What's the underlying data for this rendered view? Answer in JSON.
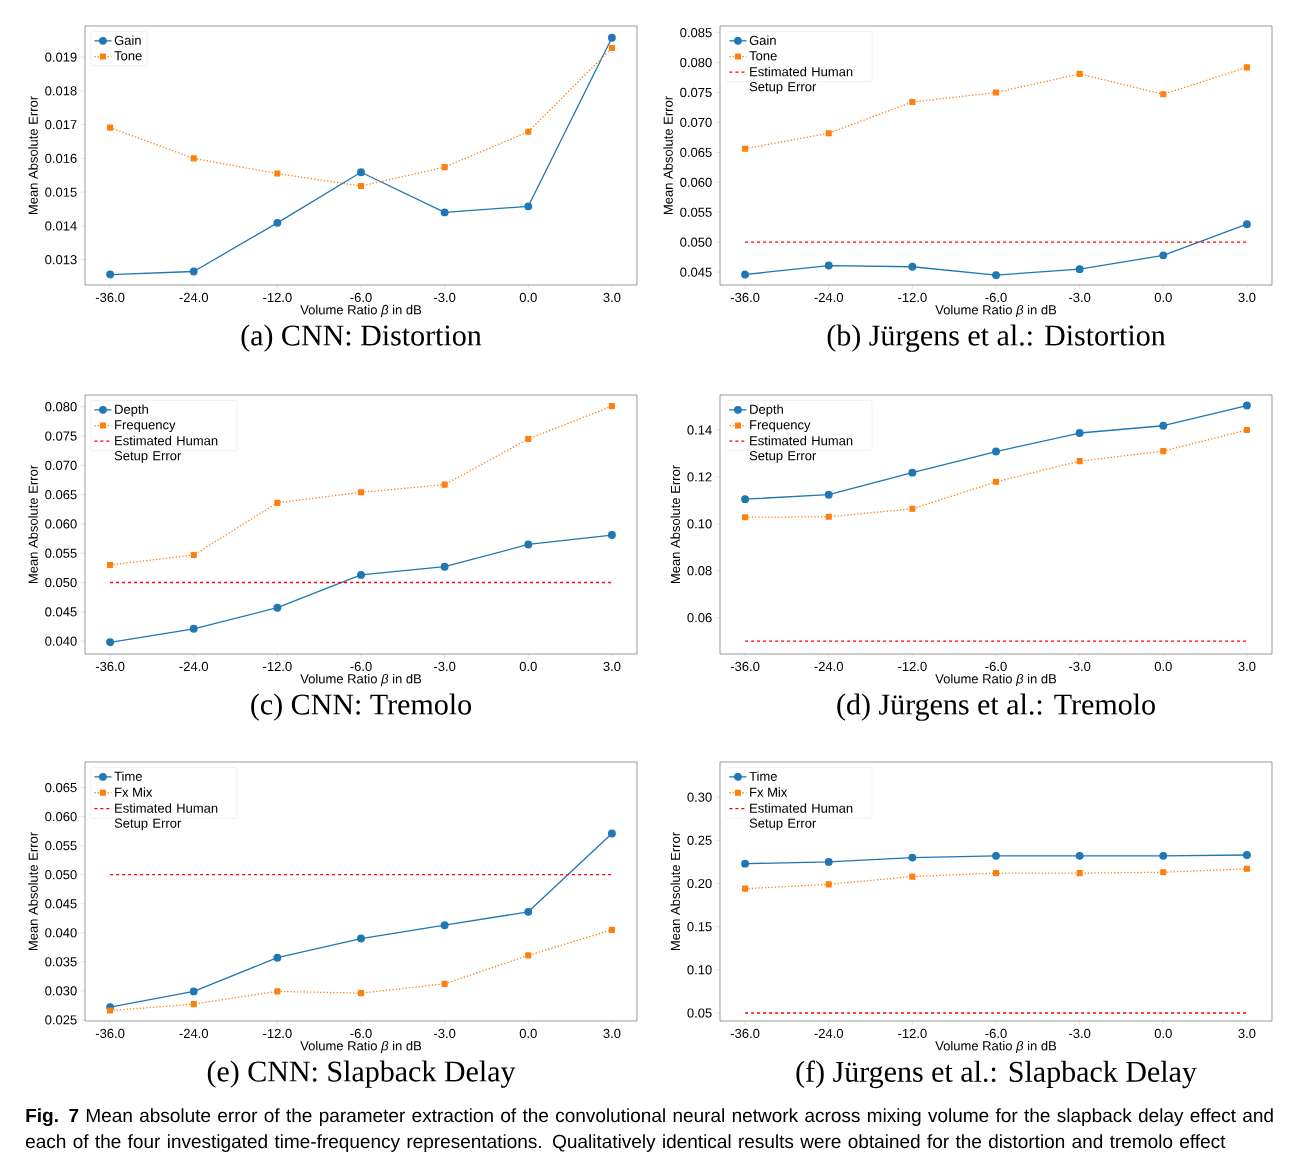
{
  "chart_data": [
    {
      "type": "line",
      "title": "(a) CNN: Distortion",
      "xlabel": "Volume Ratio *β* in dB",
      "ylabel": "Mean Absolute Error",
      "categories": [
        "-36.0",
        "-24.0",
        "-12.0",
        "-6.0",
        "-3.0",
        "0.0",
        "3.0"
      ],
      "series": [
        {
          "name": "Gain",
          "color": "#1f77b4",
          "marker": "circle",
          "line_style": "solid",
          "values": [
            0.01256,
            0.01265,
            0.01409,
            0.01559,
            0.0144,
            0.01458,
            0.01957
          ]
        },
        {
          "name": "Tone",
          "color": "#ff7f0e",
          "marker": "square",
          "line_style": "dotted",
          "values": [
            0.01691,
            0.016,
            0.01555,
            0.01518,
            0.01574,
            0.01679,
            0.01927
          ]
        }
      ],
      "ylim": [
        0.01225,
        0.01992
      ],
      "yticks": [
        0.013,
        0.014,
        0.015,
        0.016,
        0.017,
        0.018,
        0.019
      ],
      "legend": "top left"
    },
    {
      "type": "line",
      "title": "(b) Jürgens et al.: Distortion",
      "xlabel": "Volume Ratio *β* in dB",
      "ylabel": "Mean Absolute Error",
      "categories": [
        "-36.0",
        "-24.0",
        "-12.0",
        "-6.0",
        "-3.0",
        "0.0",
        "3.0"
      ],
      "series": [
        {
          "name": "Gain",
          "color": "#1f77b4",
          "marker": "circle",
          "line_style": "solid",
          "values": [
            0.0446,
            0.0461,
            0.0459,
            0.0445,
            0.0455,
            0.0478,
            0.053
          ]
        },
        {
          "name": "Tone",
          "color": "#ff7f0e",
          "marker": "square",
          "line_style": "dotted",
          "values": [
            0.0656,
            0.0682,
            0.0734,
            0.075,
            0.0781,
            0.0747,
            0.0792
          ]
        }
      ],
      "ref_lines": [
        {
          "axis": "y",
          "value": 0.05,
          "label": "Estimated Human Setup Error",
          "color": "#ff0000",
          "line_style": "dashed"
        }
      ],
      "ylim": [
        0.04285,
        0.0861
      ],
      "yticks": [
        0.045,
        {
          "value": 0.05,
          "label": "0.050"
        },
        0.055,
        {
          "value": 0.06,
          "label": "0.060"
        },
        0.065,
        {
          "value": 0.07,
          "label": "0.070"
        },
        0.075,
        {
          "value": 0.08,
          "label": "0.080"
        },
        0.085
      ],
      "legend": "top left"
    },
    {
      "type": "line",
      "title": "(c) CNN: Tremolo",
      "xlabel": "Volume Ratio *β* in dB",
      "ylabel": "Mean Absolute Error",
      "categories": [
        "-36.0",
        "-24.0",
        "-12.0",
        "-6.0",
        "-3.0",
        "0.0",
        "3.0"
      ],
      "series": [
        {
          "name": "Depth",
          "color": "#1f77b4",
          "marker": "circle",
          "line_style": "solid",
          "values": [
            0.0398,
            0.0421,
            0.0457,
            0.0513,
            0.0527,
            0.0565,
            0.0581
          ]
        },
        {
          "name": "Frequency",
          "color": "#ff7f0e",
          "marker": "square",
          "line_style": "dotted",
          "values": [
            0.053,
            0.0547,
            0.0636,
            0.0654,
            0.0667,
            0.0745,
            0.0801
          ]
        }
      ],
      "ref_lines": [
        {
          "axis": "y",
          "value": 0.05,
          "label": "Estimated Human Setup Error",
          "color": "#ff0000",
          "line_style": "dashed"
        }
      ],
      "ylim": [
        0.0378,
        0.082
      ],
      "yticks": [
        {
          "value": 0.04,
          "label": "0.040"
        },
        0.045,
        {
          "value": 0.05,
          "label": "0.050"
        },
        0.055,
        {
          "value": 0.06,
          "label": "0.060"
        },
        0.065,
        {
          "value": 0.07,
          "label": "0.070"
        },
        0.075,
        {
          "value": 0.08,
          "label": "0.080"
        }
      ],
      "legend": "top left"
    },
    {
      "type": "line",
      "title": "(d) Jürgens et al.: Tremolo",
      "xlabel": "Volume Ratio *β* in dB",
      "ylabel": "Mean Absolute Error",
      "categories": [
        "-36.0",
        "-24.0",
        "-12.0",
        "-6.0",
        "-3.0",
        "0.0",
        "3.0"
      ],
      "series": [
        {
          "name": "Depth",
          "color": "#1f77b4",
          "marker": "circle",
          "line_style": "solid",
          "values": [
            0.1105,
            0.1124,
            0.1218,
            0.1308,
            0.1387,
            0.1418,
            0.1504
          ]
        },
        {
          "name": "Frequency",
          "color": "#ff7f0e",
          "marker": "square",
          "line_style": "dotted",
          "values": [
            0.1028,
            0.103,
            0.1064,
            0.1179,
            0.1267,
            0.131,
            0.14
          ]
        }
      ],
      "ref_lines": [
        {
          "axis": "y",
          "value": 0.05,
          "label": "Estimated Human Setup Error",
          "color": "#ff0000",
          "line_style": "dashed"
        }
      ],
      "ylim": [
        0.0445,
        0.1549
      ],
      "yticks": [
        0.06,
        0.08,
        {
          "value": 0.1,
          "label": "0.10"
        },
        0.12,
        0.14
      ],
      "legend": "top left"
    },
    {
      "type": "line",
      "title": "(e) CNN: Slapback Delay",
      "xlabel": "Volume Ratio *β* in dB",
      "ylabel": "Mean Absolute Error",
      "categories": [
        "-36.0",
        "-24.0",
        "-12.0",
        "-6.0",
        "-3.0",
        "0.0",
        "3.0"
      ],
      "series": [
        {
          "name": "Time",
          "color": "#1f77b4",
          "marker": "circle",
          "line_style": "solid",
          "values": [
            0.0272,
            0.0299,
            0.0357,
            0.039,
            0.0413,
            0.0436,
            0.0571
          ]
        },
        {
          "name": "Fx Mix",
          "color": "#ff7f0e",
          "marker": "square",
          "line_style": "dotted",
          "values": [
            0.0266,
            0.0277,
            0.0299,
            0.0296,
            0.0312,
            0.0361,
            0.0405
          ]
        }
      ],
      "ref_lines": [
        {
          "axis": "y",
          "value": 0.05,
          "label": "Estimated Human Setup Error",
          "color": "#ff0000",
          "line_style": "dashed"
        }
      ],
      "ylim": [
        0.0248,
        0.0694
      ],
      "yticks": [
        0.025,
        {
          "value": 0.03,
          "label": "0.030"
        },
        0.035,
        {
          "value": 0.04,
          "label": "0.040"
        },
        0.045,
        {
          "value": 0.05,
          "label": "0.050"
        },
        0.055,
        {
          "value": 0.06,
          "label": "0.060"
        },
        0.065
      ],
      "legend": "top left"
    },
    {
      "type": "line",
      "title": "(f) Jürgens et al.: Slapback Delay",
      "xlabel": "Volume Ratio *β* in dB",
      "ylabel": "Mean Absolute Error",
      "categories": [
        "-36.0",
        "-24.0",
        "-12.0",
        "-6.0",
        "-3.0",
        "0.0",
        "3.0"
      ],
      "series": [
        {
          "name": "Time",
          "color": "#1f77b4",
          "marker": "circle",
          "line_style": "solid",
          "values": [
            0.223,
            0.225,
            0.23,
            0.232,
            0.232,
            0.232,
            0.233
          ]
        },
        {
          "name": "Fx Mix",
          "color": "#ff7f0e",
          "marker": "square",
          "line_style": "dotted",
          "values": [
            0.194,
            0.199,
            0.208,
            0.212,
            0.212,
            0.213,
            0.217
          ]
        }
      ],
      "ref_lines": [
        {
          "axis": "y",
          "value": 0.05,
          "label": "Estimated Human Setup Error",
          "color": "#ff0000",
          "line_style": "dashed"
        }
      ],
      "ylim": [
        0.0407,
        0.3407
      ],
      "yticks": [
        0.05,
        {
          "value": 0.1,
          "label": "0.10"
        },
        0.15,
        {
          "value": 0.2,
          "label": "0.20"
        },
        0.25,
        {
          "value": 0.3,
          "label": "0.30"
        }
      ],
      "legend": "top left",
      "annotations": [
        "**Fig. 7** Mean absolute error of the parameter extraction of the convolutional neural network across mixing volume for the slapback delay effect and each of the four investigated time-frequency representations. Qualitatively identical results were obtained for the distortion and tremolo effect"
      ]
    }
  ]
}
